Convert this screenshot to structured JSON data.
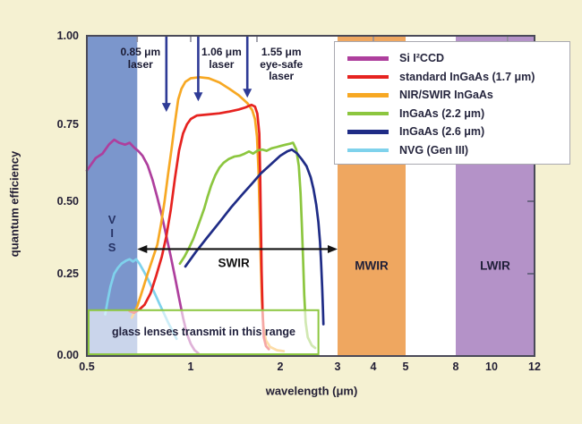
{
  "colors": {
    "background": "#f5f1d2",
    "plot_bg": "#ffffff",
    "plot_border": "#4a4a58",
    "laser_arrow": "#2e3b96",
    "swir_arrow": "#131313",
    "glass_border": "#8cc63f",
    "glass_fill": "rgba(255,255,255,0.6)",
    "top_tick": "#8f8f9c",
    "right_tick": "#5a5a72"
  },
  "y_axis": {
    "label": "quantum efficiency",
    "tick_values": [
      1.0,
      0.75,
      0.5,
      0.25,
      0.0
    ],
    "tick_labels": [
      "1.00",
      "0.75",
      "0.50",
      "0.25",
      "0.00"
    ]
  },
  "x_axis": {
    "label": "wavelength (μm)",
    "tick_values": [
      0.5,
      1,
      2,
      3,
      4,
      5,
      8,
      10,
      12
    ],
    "tick_labels": [
      "0.5",
      "1",
      "2",
      "3",
      "4",
      "5",
      "8",
      "10",
      "12"
    ]
  },
  "bands": [
    {
      "name": "VIS",
      "letters": [
        "V",
        "I",
        "S"
      ],
      "label": "",
      "from": 0.5,
      "to": 0.7,
      "color": "#7b96cc",
      "label_qe": 0.39
    },
    {
      "name": "MWIR",
      "label": "MWIR",
      "from": 3.0,
      "to": 5.0,
      "color": "#efa760",
      "label_qe": 0.278
    },
    {
      "name": "LWIR",
      "label": "LWIR",
      "from": 8.0,
      "to": 12.0,
      "color": "#b492c8",
      "label_qe": 0.278
    }
  ],
  "annotations": {
    "lasers": [
      {
        "wavelength": 0.85,
        "tip_qe": 0.785,
        "lines": [
          "0.85 μm",
          "laser"
        ]
      },
      {
        "wavelength": 1.06,
        "tip_qe": 0.815,
        "lines": [
          "1.06 μm",
          "laser"
        ]
      },
      {
        "wavelength": 1.55,
        "tip_qe": 0.825,
        "lines": [
          "1.55 μm",
          "eye-safe",
          "laser"
        ]
      }
    ],
    "swir": {
      "label": "SWIR",
      "from": 0.7,
      "to": 3.0,
      "qe": 0.335
    },
    "glass_box": {
      "text": "glass lenses transmit in this range",
      "from": 0.5,
      "to": 2.62,
      "qe_top": 0.138
    },
    "top_ticks": [
      0.7,
      1.0,
      1.67,
      4.0,
      10.7
    ],
    "right_ticks": [
      0.25,
      0.5
    ]
  },
  "chart_data": {
    "type": "line",
    "title": "",
    "xlabel": "wavelength (μm)",
    "ylabel": "quantum efficiency",
    "xlim": [
      0.5,
      12
    ],
    "ylim": [
      0,
      1
    ],
    "x_scale": "piecewise-log",
    "legend_position": "top-right",
    "series": [
      {
        "name": "Si I²CCD",
        "color": "#ae3f9d",
        "points": [
          [
            0.5,
            0.6
          ],
          [
            0.53,
            0.64
          ],
          [
            0.555,
            0.655
          ],
          [
            0.58,
            0.685
          ],
          [
            0.6,
            0.7
          ],
          [
            0.62,
            0.69
          ],
          [
            0.645,
            0.684
          ],
          [
            0.665,
            0.69
          ],
          [
            0.685,
            0.675
          ],
          [
            0.705,
            0.663
          ],
          [
            0.725,
            0.648
          ],
          [
            0.75,
            0.617
          ],
          [
            0.775,
            0.57
          ],
          [
            0.8,
            0.512
          ],
          [
            0.825,
            0.45
          ],
          [
            0.85,
            0.38
          ],
          [
            0.875,
            0.31
          ],
          [
            0.9,
            0.24
          ],
          [
            0.925,
            0.175
          ],
          [
            0.95,
            0.115
          ],
          [
            0.975,
            0.065
          ],
          [
            1.0,
            0.035
          ],
          [
            1.03,
            0.015
          ],
          [
            1.06,
            0.006
          ]
        ]
      },
      {
        "name": "NVG (Gen III)",
        "color": "#7fd2ec",
        "points": [
          [
            0.565,
            0.125
          ],
          [
            0.575,
            0.17
          ],
          [
            0.585,
            0.21
          ],
          [
            0.6,
            0.25
          ],
          [
            0.615,
            0.27
          ],
          [
            0.63,
            0.285
          ],
          [
            0.65,
            0.295
          ],
          [
            0.665,
            0.3
          ],
          [
            0.68,
            0.292
          ],
          [
            0.695,
            0.3
          ],
          [
            0.71,
            0.285
          ],
          [
            0.73,
            0.26
          ],
          [
            0.75,
            0.235
          ],
          [
            0.77,
            0.21
          ],
          [
            0.79,
            0.185
          ],
          [
            0.81,
            0.16
          ],
          [
            0.835,
            0.13
          ],
          [
            0.86,
            0.1
          ],
          [
            0.885,
            0.075
          ],
          [
            0.91,
            0.05
          ]
        ]
      },
      {
        "name": "NIR/SWIR InGaAs",
        "color": "#f7a823",
        "points": [
          [
            0.675,
            0.115
          ],
          [
            0.7,
            0.15
          ],
          [
            0.725,
            0.2
          ],
          [
            0.75,
            0.25
          ],
          [
            0.775,
            0.3
          ],
          [
            0.8,
            0.35
          ],
          [
            0.82,
            0.42
          ],
          [
            0.84,
            0.5
          ],
          [
            0.86,
            0.59
          ],
          [
            0.88,
            0.67
          ],
          [
            0.9,
            0.755
          ],
          [
            0.92,
            0.82
          ],
          [
            0.94,
            0.85
          ],
          [
            0.965,
            0.87
          ],
          [
            1.0,
            0.88
          ],
          [
            1.07,
            0.883
          ],
          [
            1.15,
            0.88
          ],
          [
            1.25,
            0.868
          ],
          [
            1.35,
            0.85
          ],
          [
            1.45,
            0.832
          ],
          [
            1.55,
            0.81
          ],
          [
            1.61,
            0.79
          ],
          [
            1.645,
            0.765
          ],
          [
            1.67,
            0.71
          ],
          [
            1.69,
            0.6
          ],
          [
            1.705,
            0.46
          ],
          [
            1.72,
            0.3
          ],
          [
            1.735,
            0.17
          ],
          [
            1.755,
            0.09
          ],
          [
            1.79,
            0.045
          ],
          [
            1.85,
            0.025
          ],
          [
            1.95,
            0.015
          ],
          [
            2.05,
            0.012
          ]
        ]
      },
      {
        "name": "standard InGaAs (1.7 μm)",
        "color": "#e62320",
        "points": [
          [
            0.665,
            0.135
          ],
          [
            0.685,
            0.13
          ],
          [
            0.71,
            0.14
          ],
          [
            0.735,
            0.155
          ],
          [
            0.765,
            0.19
          ],
          [
            0.795,
            0.245
          ],
          [
            0.825,
            0.31
          ],
          [
            0.85,
            0.38
          ],
          [
            0.875,
            0.47
          ],
          [
            0.9,
            0.575
          ],
          [
            0.925,
            0.665
          ],
          [
            0.95,
            0.72
          ],
          [
            0.975,
            0.75
          ],
          [
            1.0,
            0.765
          ],
          [
            1.05,
            0.775
          ],
          [
            1.15,
            0.778
          ],
          [
            1.25,
            0.781
          ],
          [
            1.35,
            0.786
          ],
          [
            1.45,
            0.792
          ],
          [
            1.53,
            0.798
          ],
          [
            1.6,
            0.805
          ],
          [
            1.645,
            0.8
          ],
          [
            1.675,
            0.78
          ],
          [
            1.7,
            0.72
          ],
          [
            1.712,
            0.58
          ],
          [
            1.722,
            0.42
          ],
          [
            1.732,
            0.26
          ],
          [
            1.745,
            0.13
          ],
          [
            1.76,
            0.055
          ],
          [
            1.79,
            0.028
          ],
          [
            1.83,
            0.018
          ]
        ]
      },
      {
        "name": "InGaAs (2.2 μm)",
        "color": "#8cc63f",
        "points": [
          [
            0.93,
            0.285
          ],
          [
            0.96,
            0.31
          ],
          [
            0.99,
            0.34
          ],
          [
            1.02,
            0.37
          ],
          [
            1.05,
            0.405
          ],
          [
            1.08,
            0.44
          ],
          [
            1.11,
            0.475
          ],
          [
            1.14,
            0.515
          ],
          [
            1.17,
            0.55
          ],
          [
            1.21,
            0.585
          ],
          [
            1.25,
            0.61
          ],
          [
            1.29,
            0.625
          ],
          [
            1.34,
            0.637
          ],
          [
            1.4,
            0.645
          ],
          [
            1.46,
            0.648
          ],
          [
            1.52,
            0.655
          ],
          [
            1.57,
            0.662
          ],
          [
            1.62,
            0.655
          ],
          [
            1.68,
            0.665
          ],
          [
            1.74,
            0.668
          ],
          [
            1.8,
            0.664
          ],
          [
            1.87,
            0.672
          ],
          [
            1.94,
            0.676
          ],
          [
            2.01,
            0.68
          ],
          [
            2.08,
            0.684
          ],
          [
            2.14,
            0.687
          ],
          [
            2.19,
            0.69
          ],
          [
            2.24,
            0.668
          ],
          [
            2.28,
            0.615
          ],
          [
            2.31,
            0.525
          ],
          [
            2.33,
            0.42
          ],
          [
            2.35,
            0.3
          ],
          [
            2.37,
            0.185
          ],
          [
            2.395,
            0.1
          ],
          [
            2.43,
            0.055
          ],
          [
            2.5,
            0.03
          ],
          [
            2.56,
            0.022
          ]
        ]
      },
      {
        "name": "InGaAs (2.6 μm)",
        "color": "#1f2c86",
        "points": [
          [
            0.965,
            0.275
          ],
          [
            1.04,
            0.325
          ],
          [
            1.13,
            0.372
          ],
          [
            1.25,
            0.428
          ],
          [
            1.37,
            0.48
          ],
          [
            1.5,
            0.525
          ],
          [
            1.61,
            0.558
          ],
          [
            1.72,
            0.59
          ],
          [
            1.85,
            0.618
          ],
          [
            2.0,
            0.648
          ],
          [
            2.1,
            0.662
          ],
          [
            2.17,
            0.668
          ],
          [
            2.25,
            0.656
          ],
          [
            2.33,
            0.636
          ],
          [
            2.41,
            0.614
          ],
          [
            2.48,
            0.578
          ],
          [
            2.53,
            0.54
          ],
          [
            2.58,
            0.488
          ],
          [
            2.62,
            0.428
          ],
          [
            2.65,
            0.36
          ],
          [
            2.67,
            0.29
          ],
          [
            2.69,
            0.21
          ],
          [
            2.705,
            0.14
          ],
          [
            2.715,
            0.095
          ]
        ]
      }
    ]
  }
}
